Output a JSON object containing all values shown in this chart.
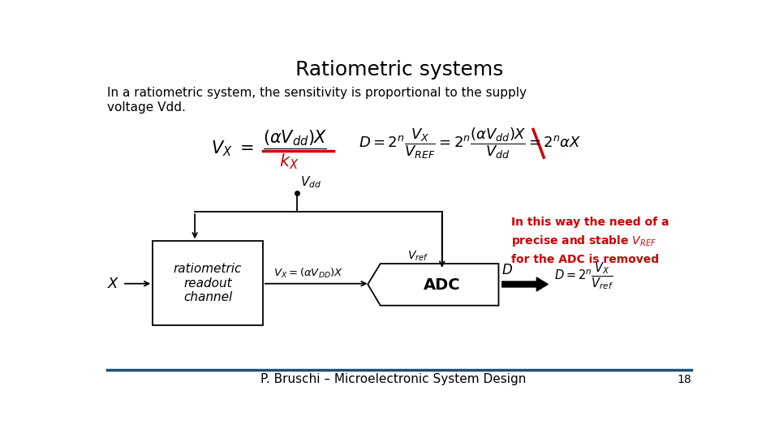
{
  "title": "Ratiometric systems",
  "subtitle": "In a ratiometric system, the sensitivity is proportional to the supply\nvoltage Vdd.",
  "footer": "P. Bruschi – Microelectronic System Design",
  "page_number": "18",
  "bg_color": "#ffffff",
  "title_color": "#000000",
  "text_color": "#000000",
  "red_color": "#cc0000",
  "footer_line_color": "#1f4e79"
}
